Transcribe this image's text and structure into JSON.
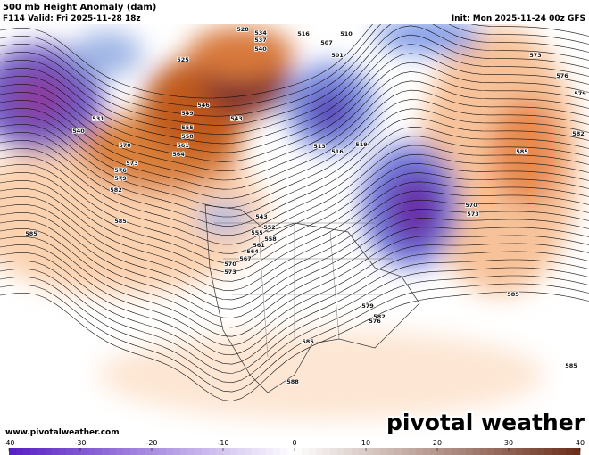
{
  "header": {
    "title": "500 mb Height Anomaly (dam)",
    "valid": "F114 Valid: Fri 2025-11-28 18z",
    "init": "Init: Mon 2025-11-24 00z GFS"
  },
  "branding": {
    "url": "www.pivotalweather.com",
    "logo": "pivotal weather"
  },
  "colorbar": {
    "range": [
      -40,
      40
    ],
    "ticks": [
      -40,
      -30,
      -20,
      -10,
      0,
      10,
      20,
      30,
      40
    ]
  },
  "contour_labels": [
    "525",
    "528",
    "534",
    "537",
    "540",
    "516",
    "507",
    "501",
    "510",
    "573",
    "576",
    "579",
    "582",
    "585",
    "531",
    "540",
    "546",
    "543",
    "549",
    "555",
    "558",
    "561",
    "564",
    "570",
    "573",
    "576",
    "579",
    "582",
    "585",
    "585",
    "513",
    "516",
    "519",
    "543",
    "552",
    "555",
    "558",
    "561",
    "564",
    "567",
    "570",
    "573",
    "570",
    "573",
    "585",
    "585",
    "588",
    "585",
    "576",
    "579",
    "582"
  ]
}
